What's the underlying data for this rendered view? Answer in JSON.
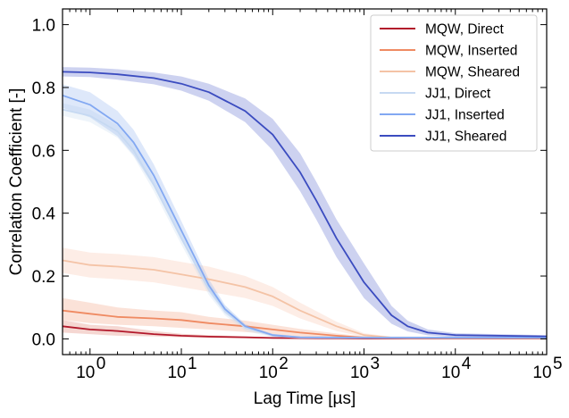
{
  "chart_data": {
    "type": "line",
    "xlabel": "Lag Time [µs]",
    "ylabel": "Correlation Coefficient [-]",
    "xscale": "log",
    "xlim": [
      0.5,
      100000
    ],
    "ylim": [
      -0.05,
      1.05
    ],
    "x_ticks": [
      {
        "value": 1,
        "base": "10",
        "exp": "0"
      },
      {
        "value": 10,
        "base": "10",
        "exp": "1"
      },
      {
        "value": 100,
        "base": "10",
        "exp": "2"
      },
      {
        "value": 1000,
        "base": "10",
        "exp": "3"
      },
      {
        "value": 10000,
        "base": "10",
        "exp": "4"
      },
      {
        "value": 100000,
        "base": "10",
        "exp": "5"
      }
    ],
    "y_ticks": [
      {
        "value": 0.0,
        "label": "0.0"
      },
      {
        "value": 0.2,
        "label": "0.2"
      },
      {
        "value": 0.4,
        "label": "0.4"
      },
      {
        "value": 0.6,
        "label": "0.6"
      },
      {
        "value": 0.8,
        "label": "0.8"
      },
      {
        "value": 1.0,
        "label": "1.0"
      }
    ],
    "grid": false,
    "legend_position": "top-right",
    "series": [
      {
        "name": "MQW, Direct",
        "color": "#b2182b",
        "band_color": "#d6604d",
        "band_opacity": 0.25,
        "points": [
          [
            0.5,
            0.04
          ],
          [
            1,
            0.03
          ],
          [
            2,
            0.025
          ],
          [
            5,
            0.015
          ],
          [
            10,
            0.01
          ],
          [
            20,
            0.007
          ],
          [
            50,
            0.005
          ],
          [
            100,
            0.003
          ],
          [
            300,
            0.002
          ],
          [
            1000,
            0.001
          ],
          [
            10000,
            0.001
          ],
          [
            100000,
            0.001
          ]
        ],
        "band": [
          [
            0.5,
            0.02,
            0.06
          ],
          [
            1,
            0.015,
            0.045
          ],
          [
            2,
            0.01,
            0.04
          ],
          [
            5,
            0.008,
            0.025
          ],
          [
            10,
            0.005,
            0.016
          ],
          [
            20,
            0.003,
            0.012
          ],
          [
            50,
            0.002,
            0.008
          ],
          [
            100,
            0.001,
            0.005
          ],
          [
            300,
            0.001,
            0.003
          ],
          [
            1000,
            0.0,
            0.002
          ],
          [
            10000,
            0.0,
            0.002
          ],
          [
            100000,
            0.0,
            0.002
          ]
        ]
      },
      {
        "name": "MQW, Inserted",
        "color": "#ef8a62",
        "band_color": "#ef8a62",
        "band_opacity": 0.25,
        "points": [
          [
            0.5,
            0.09
          ],
          [
            1,
            0.08
          ],
          [
            2,
            0.07
          ],
          [
            5,
            0.065
          ],
          [
            10,
            0.06
          ],
          [
            20,
            0.05
          ],
          [
            50,
            0.04
          ],
          [
            100,
            0.03
          ],
          [
            200,
            0.02
          ],
          [
            500,
            0.01
          ],
          [
            1000,
            0.004
          ],
          [
            3000,
            0.002
          ],
          [
            10000,
            0.002
          ],
          [
            100000,
            0.002
          ]
        ],
        "band": [
          [
            0.5,
            0.06,
            0.13
          ],
          [
            1,
            0.05,
            0.115
          ],
          [
            2,
            0.045,
            0.1
          ],
          [
            5,
            0.04,
            0.09
          ],
          [
            10,
            0.035,
            0.085
          ],
          [
            20,
            0.03,
            0.07
          ],
          [
            50,
            0.022,
            0.058
          ],
          [
            100,
            0.015,
            0.045
          ],
          [
            200,
            0.008,
            0.032
          ],
          [
            500,
            0.003,
            0.017
          ],
          [
            1000,
            0.0,
            0.008
          ],
          [
            3000,
            0.0,
            0.004
          ],
          [
            10000,
            0.0,
            0.004
          ],
          [
            100000,
            0.0,
            0.004
          ]
        ]
      },
      {
        "name": "MQW, Sheared",
        "color": "#f4c3a6",
        "band_color": "#f4a582",
        "band_opacity": 0.2,
        "points": [
          [
            0.5,
            0.25
          ],
          [
            1,
            0.235
          ],
          [
            2,
            0.23
          ],
          [
            5,
            0.22
          ],
          [
            10,
            0.205
          ],
          [
            20,
            0.19
          ],
          [
            50,
            0.165
          ],
          [
            100,
            0.135
          ],
          [
            200,
            0.09
          ],
          [
            500,
            0.04
          ],
          [
            1000,
            0.012
          ],
          [
            2000,
            0.004
          ],
          [
            10000,
            0.003
          ],
          [
            100000,
            0.003
          ]
        ],
        "band": [
          [
            0.5,
            0.21,
            0.29
          ],
          [
            1,
            0.195,
            0.275
          ],
          [
            2,
            0.19,
            0.27
          ],
          [
            5,
            0.18,
            0.26
          ],
          [
            10,
            0.165,
            0.245
          ],
          [
            20,
            0.15,
            0.23
          ],
          [
            50,
            0.13,
            0.2
          ],
          [
            100,
            0.105,
            0.165
          ],
          [
            200,
            0.065,
            0.115
          ],
          [
            500,
            0.025,
            0.055
          ],
          [
            1000,
            0.006,
            0.018
          ],
          [
            2000,
            0.001,
            0.007
          ],
          [
            10000,
            0.0,
            0.006
          ],
          [
            100000,
            0.0,
            0.006
          ]
        ]
      },
      {
        "name": "JJ1, Direct",
        "color": "#c6d9f2",
        "band_color": "#c6dbef",
        "band_opacity": 0.3,
        "points": [
          [
            0.5,
            0.73
          ],
          [
            1,
            0.71
          ],
          [
            2,
            0.66
          ],
          [
            3,
            0.6
          ],
          [
            5,
            0.49
          ],
          [
            10,
            0.32
          ],
          [
            20,
            0.16
          ],
          [
            30,
            0.09
          ],
          [
            50,
            0.035
          ],
          [
            100,
            0.01
          ],
          [
            200,
            0.004
          ],
          [
            1000,
            0.003
          ],
          [
            100000,
            0.003
          ]
        ],
        "band": [
          [
            0.5,
            0.71,
            0.75
          ],
          [
            1,
            0.69,
            0.73
          ],
          [
            2,
            0.64,
            0.68
          ],
          [
            3,
            0.58,
            0.62
          ],
          [
            5,
            0.47,
            0.51
          ],
          [
            10,
            0.3,
            0.34
          ],
          [
            20,
            0.14,
            0.18
          ],
          [
            30,
            0.075,
            0.105
          ],
          [
            50,
            0.025,
            0.045
          ],
          [
            100,
            0.005,
            0.015
          ],
          [
            200,
            0.001,
            0.007
          ],
          [
            1000,
            0.0,
            0.006
          ],
          [
            100000,
            0.0,
            0.006
          ]
        ]
      },
      {
        "name": "JJ1, Inserted",
        "color": "#82a8f2",
        "band_color": "#92b4f0",
        "band_opacity": 0.3,
        "points": [
          [
            0.5,
            0.775
          ],
          [
            1,
            0.745
          ],
          [
            2,
            0.685
          ],
          [
            3,
            0.625
          ],
          [
            5,
            0.52
          ],
          [
            10,
            0.345
          ],
          [
            20,
            0.17
          ],
          [
            30,
            0.095
          ],
          [
            50,
            0.04
          ],
          [
            100,
            0.012
          ],
          [
            200,
            0.005
          ],
          [
            1000,
            0.004
          ],
          [
            100000,
            0.004
          ]
        ],
        "band": [
          [
            0.5,
            0.735,
            0.81
          ],
          [
            1,
            0.705,
            0.785
          ],
          [
            2,
            0.645,
            0.725
          ],
          [
            3,
            0.585,
            0.665
          ],
          [
            5,
            0.485,
            0.555
          ],
          [
            10,
            0.315,
            0.375
          ],
          [
            20,
            0.15,
            0.19
          ],
          [
            30,
            0.082,
            0.108
          ],
          [
            50,
            0.033,
            0.047
          ],
          [
            100,
            0.008,
            0.016
          ],
          [
            200,
            0.002,
            0.008
          ],
          [
            1000,
            0.001,
            0.007
          ],
          [
            100000,
            0.001,
            0.007
          ]
        ]
      },
      {
        "name": "JJ1, Sheared",
        "color": "#3b4cc0",
        "band_color": "#4a5cc8",
        "band_opacity": 0.28,
        "points": [
          [
            0.5,
            0.85
          ],
          [
            1,
            0.848
          ],
          [
            2,
            0.842
          ],
          [
            5,
            0.83
          ],
          [
            10,
            0.812
          ],
          [
            20,
            0.785
          ],
          [
            50,
            0.725
          ],
          [
            100,
            0.65
          ],
          [
            200,
            0.53
          ],
          [
            300,
            0.44
          ],
          [
            500,
            0.32
          ],
          [
            1000,
            0.18
          ],
          [
            2000,
            0.075
          ],
          [
            3000,
            0.04
          ],
          [
            5000,
            0.02
          ],
          [
            10000,
            0.012
          ],
          [
            100000,
            0.008
          ]
        ],
        "band": [
          [
            0.5,
            0.835,
            0.865
          ],
          [
            1,
            0.833,
            0.863
          ],
          [
            2,
            0.825,
            0.858
          ],
          [
            5,
            0.81,
            0.848
          ],
          [
            10,
            0.79,
            0.835
          ],
          [
            20,
            0.758,
            0.812
          ],
          [
            50,
            0.69,
            0.765
          ],
          [
            100,
            0.6,
            0.7
          ],
          [
            200,
            0.47,
            0.59
          ],
          [
            300,
            0.38,
            0.5
          ],
          [
            500,
            0.26,
            0.38
          ],
          [
            1000,
            0.13,
            0.24
          ],
          [
            2000,
            0.048,
            0.105
          ],
          [
            3000,
            0.024,
            0.058
          ],
          [
            5000,
            0.011,
            0.03
          ],
          [
            10000,
            0.006,
            0.018
          ],
          [
            100000,
            0.004,
            0.012
          ]
        ]
      }
    ]
  }
}
